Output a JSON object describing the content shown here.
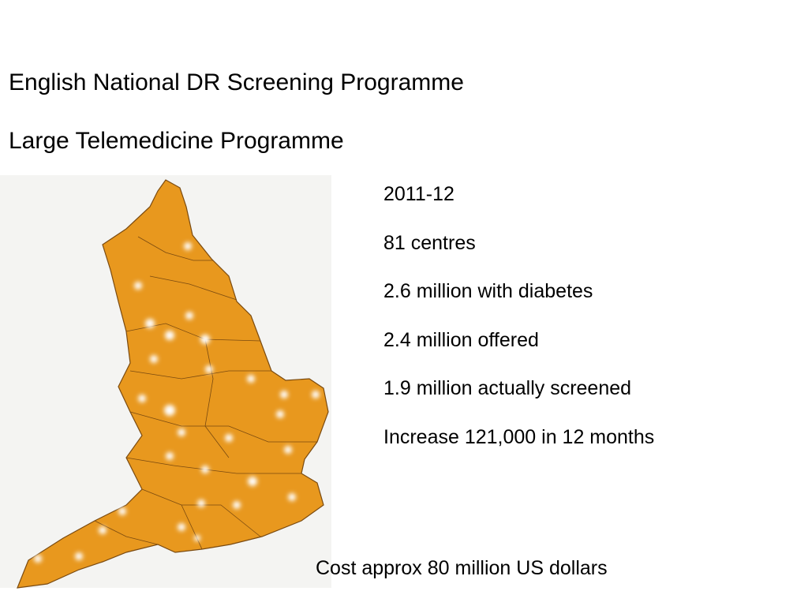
{
  "header": {
    "title": "English National DR Screening Programme",
    "subtitle": "Large Telemedicine Programme"
  },
  "stats": {
    "items": [
      "2011-12",
      "81 centres",
      "2.6 million with diabetes",
      "2.4 million offered",
      "1.9 million actually screened",
      "Increase 121,000 in 12 months"
    ]
  },
  "footer": "Cost approx 80 million US dollars"
}
